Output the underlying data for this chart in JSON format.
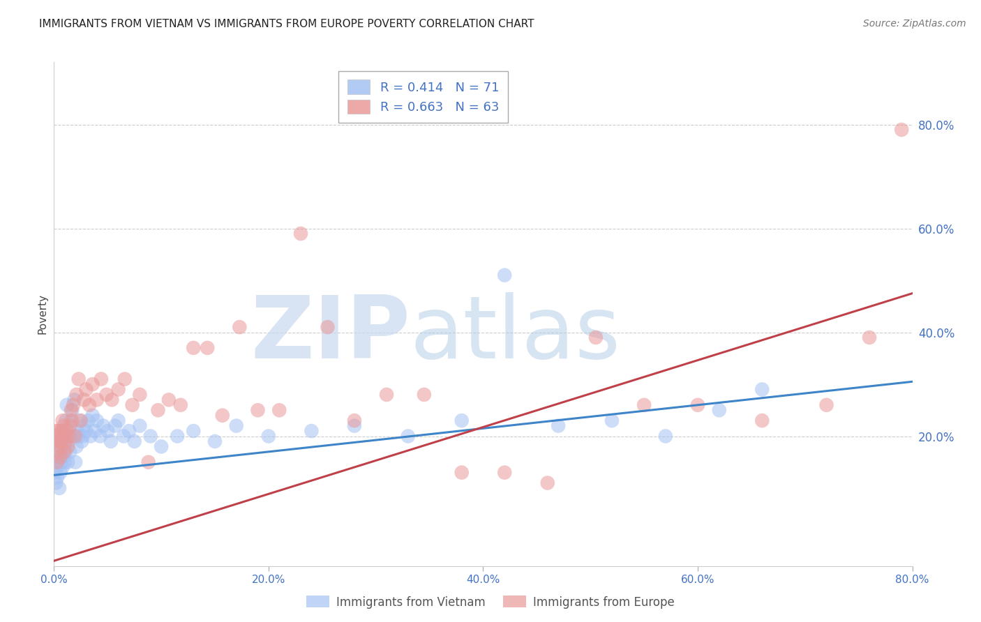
{
  "title": "IMMIGRANTS FROM VIETNAM VS IMMIGRANTS FROM EUROPE POVERTY CORRELATION CHART",
  "source": "Source: ZipAtlas.com",
  "ylabel": "Poverty",
  "xlim": [
    0.0,
    0.8
  ],
  "ylim": [
    -0.05,
    0.92
  ],
  "xticks": [
    0.0,
    0.2,
    0.4,
    0.6,
    0.8
  ],
  "yticks": [
    0.2,
    0.4,
    0.6,
    0.8
  ],
  "ytick_labels": [
    "20.0%",
    "40.0%",
    "60.0%",
    "80.0%"
  ],
  "xtick_labels": [
    "0.0%",
    "20.0%",
    "40.0%",
    "60.0%",
    "80.0%"
  ],
  "viet_x": [
    0.001,
    0.002,
    0.002,
    0.003,
    0.003,
    0.004,
    0.005,
    0.005,
    0.006,
    0.006,
    0.007,
    0.007,
    0.008,
    0.008,
    0.009,
    0.009,
    0.01,
    0.01,
    0.011,
    0.011,
    0.012,
    0.012,
    0.013,
    0.014,
    0.015,
    0.015,
    0.016,
    0.017,
    0.018,
    0.019,
    0.02,
    0.021,
    0.022,
    0.023,
    0.024,
    0.026,
    0.027,
    0.028,
    0.03,
    0.032,
    0.034,
    0.036,
    0.038,
    0.04,
    0.043,
    0.046,
    0.05,
    0.053,
    0.057,
    0.06,
    0.065,
    0.07,
    0.075,
    0.08,
    0.09,
    0.1,
    0.115,
    0.13,
    0.15,
    0.17,
    0.2,
    0.24,
    0.28,
    0.33,
    0.38,
    0.42,
    0.47,
    0.52,
    0.57,
    0.62,
    0.66
  ],
  "viet_y": [
    0.13,
    0.11,
    0.15,
    0.12,
    0.14,
    0.16,
    0.1,
    0.17,
    0.13,
    0.19,
    0.15,
    0.18,
    0.14,
    0.16,
    0.17,
    0.21,
    0.15,
    0.19,
    0.17,
    0.23,
    0.2,
    0.26,
    0.15,
    0.19,
    0.17,
    0.21,
    0.23,
    0.25,
    0.2,
    0.27,
    0.15,
    0.18,
    0.21,
    0.2,
    0.23,
    0.19,
    0.2,
    0.22,
    0.21,
    0.23,
    0.2,
    0.24,
    0.21,
    0.23,
    0.2,
    0.22,
    0.21,
    0.19,
    0.22,
    0.23,
    0.2,
    0.21,
    0.19,
    0.22,
    0.2,
    0.18,
    0.2,
    0.21,
    0.19,
    0.22,
    0.2,
    0.21,
    0.22,
    0.2,
    0.23,
    0.51,
    0.22,
    0.23,
    0.2,
    0.25,
    0.29
  ],
  "europe_x": [
    0.001,
    0.002,
    0.002,
    0.003,
    0.004,
    0.004,
    0.005,
    0.006,
    0.006,
    0.007,
    0.008,
    0.008,
    0.009,
    0.01,
    0.011,
    0.012,
    0.013,
    0.014,
    0.015,
    0.016,
    0.017,
    0.018,
    0.02,
    0.021,
    0.023,
    0.025,
    0.028,
    0.03,
    0.033,
    0.036,
    0.04,
    0.044,
    0.049,
    0.054,
    0.06,
    0.066,
    0.073,
    0.08,
    0.088,
    0.097,
    0.107,
    0.118,
    0.13,
    0.143,
    0.157,
    0.173,
    0.19,
    0.21,
    0.23,
    0.255,
    0.28,
    0.31,
    0.345,
    0.38,
    0.42,
    0.46,
    0.505,
    0.55,
    0.6,
    0.66,
    0.72,
    0.76,
    0.79
  ],
  "europe_y": [
    0.21,
    0.19,
    0.2,
    0.15,
    0.21,
    0.17,
    0.18,
    0.16,
    0.19,
    0.21,
    0.2,
    0.23,
    0.22,
    0.17,
    0.19,
    0.21,
    0.18,
    0.2,
    0.22,
    0.25,
    0.23,
    0.26,
    0.2,
    0.28,
    0.31,
    0.23,
    0.27,
    0.29,
    0.26,
    0.3,
    0.27,
    0.31,
    0.28,
    0.27,
    0.29,
    0.31,
    0.26,
    0.28,
    0.15,
    0.25,
    0.27,
    0.26,
    0.37,
    0.37,
    0.24,
    0.41,
    0.25,
    0.25,
    0.59,
    0.41,
    0.23,
    0.28,
    0.28,
    0.13,
    0.13,
    0.11,
    0.39,
    0.26,
    0.26,
    0.23,
    0.26,
    0.39,
    0.79
  ],
  "viet_color": "#a4c2f4",
  "europe_color": "#ea9999",
  "viet_trend_x": [
    0.0,
    0.8
  ],
  "viet_trend_y": [
    0.125,
    0.305
  ],
  "europe_trend_x": [
    0.0,
    0.8
  ],
  "europe_trend_y": [
    -0.04,
    0.475
  ],
  "viet_line_color": "#3d85c8",
  "europe_line_color": "#c0404a",
  "legend_entries": [
    {
      "label_r": "R = 0.414",
      "label_n": "N = 71",
      "color": "#a4c2f4"
    },
    {
      "label_r": "R = 0.663",
      "label_n": "N = 63",
      "color": "#ea9999"
    }
  ],
  "bottom_legend": [
    "Immigrants from Vietnam",
    "Immigrants from Europe"
  ],
  "bottom_legend_colors": [
    "#a4c2f4",
    "#ea9999"
  ],
  "watermark_zip": "ZIP",
  "watermark_atlas": "atlas",
  "background_color": "#ffffff",
  "grid_color": "#cccccc",
  "title_fontsize": 11,
  "tick_color": "#4472c4",
  "text_color": "#4472c4"
}
